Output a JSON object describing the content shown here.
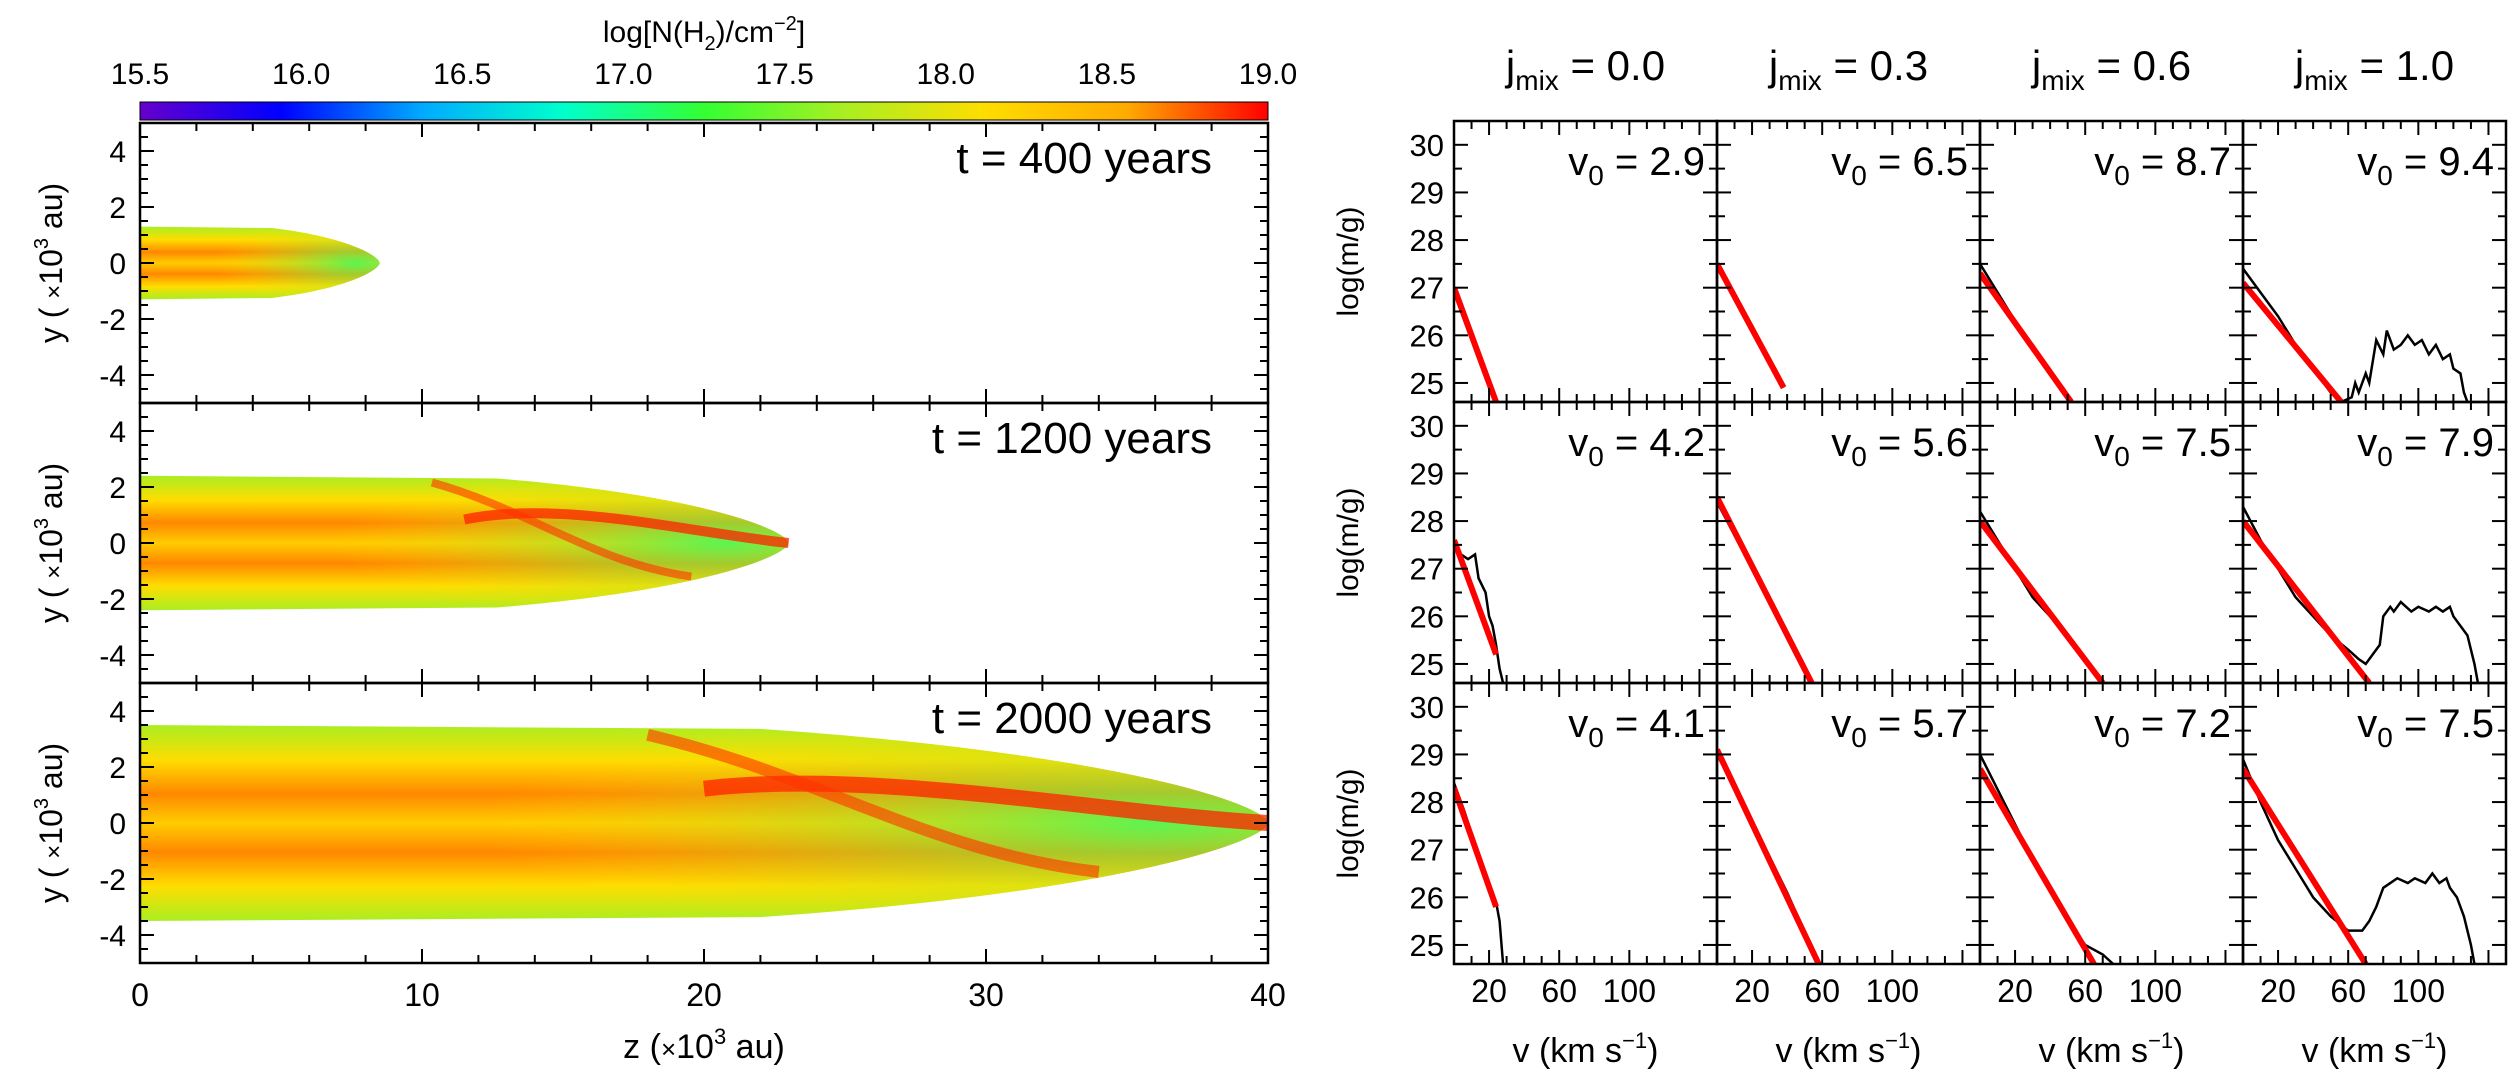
{
  "chart_data": [
    {
      "type": "heatmap",
      "colorbar": {
        "label": "log[N(H2)/cm^-2]",
        "label_parts": [
          "log[N(H",
          "2",
          ")/cm",
          "−2",
          "]"
        ],
        "ticks": [
          "15.5",
          "16.0",
          "16.5",
          "17.0",
          "17.5",
          "18.0",
          "18.5",
          "19.0"
        ],
        "range": [
          15.5,
          19.0
        ],
        "colors": [
          "#6600cc",
          "#0000ff",
          "#00aaff",
          "#00ffcc",
          "#33ff33",
          "#aaee22",
          "#ffdd00",
          "#ffaa00",
          "#ff0000"
        ]
      },
      "x_axis": {
        "label": "z (×10^3 au)",
        "label_parts": [
          "z (",
          "×",
          "10",
          "3",
          " au)"
        ],
        "range": [
          0,
          40
        ],
        "ticks": [
          "0",
          "10",
          "20",
          "30",
          "40"
        ]
      },
      "y_axis": {
        "label": "y (×10^3 au)",
        "label_parts": [
          "y ( ",
          "×",
          "10",
          "3",
          " au)"
        ],
        "range": [
          -5,
          5
        ],
        "ticks": [
          "4",
          "2",
          "0",
          "-2",
          "-4"
        ]
      },
      "panels": [
        {
          "time_label": "t = 400 years",
          "extent_z": 8.5,
          "half_width": 1.3
        },
        {
          "time_label": "t = 1200 years",
          "extent_z": 23.0,
          "half_width": 2.4
        },
        {
          "time_label": "t = 2000 years",
          "extent_z": 40.0,
          "half_width": 3.5
        }
      ]
    },
    {
      "type": "line",
      "y_axis": {
        "label": "log(m/g)",
        "range": [
          24.6,
          30.5
        ],
        "ticks": [
          "30",
          "29",
          "28",
          "27",
          "26",
          "25"
        ]
      },
      "x_axis": {
        "label": "v (km s^-1)",
        "label_parts": [
          "v (km s",
          "−1",
          ")"
        ],
        "range": [
          0,
          150
        ],
        "ticks": [
          "20",
          "60",
          "100"
        ]
      },
      "columns": [
        {
          "label": "j_mix = 0.0",
          "label_main": "j",
          "label_sub": "mix",
          "label_value": " = 0.0"
        },
        {
          "label": "j_mix = 0.3",
          "label_main": "j",
          "label_sub": "mix",
          "label_value": " = 0.3"
        },
        {
          "label": "j_mix = 0.6",
          "label_main": "j",
          "label_sub": "mix",
          "label_value": " = 0.6"
        },
        {
          "label": "j_mix = 1.0",
          "label_main": "j",
          "label_sub": "mix",
          "label_value": " = 1.0"
        }
      ],
      "rows": [
        [
          {
            "v0": "2.9",
            "fit": [
              [
                0,
                27.0
              ],
              [
                24,
                24.6
              ]
            ],
            "sim": [
              [
                0,
                26.9
              ],
              [
                6,
                26.3
              ],
              [
                12,
                25.7
              ],
              [
                18,
                25.1
              ],
              [
                24,
                24.6
              ]
            ]
          },
          {
            "v0": "6.5",
            "fit": [
              [
                0,
                27.5
              ],
              [
                38,
                24.9
              ]
            ],
            "sim": [
              [
                0,
                27.5
              ],
              [
                10,
                26.8
              ],
              [
                20,
                26.2
              ],
              [
                30,
                25.5
              ],
              [
                38,
                24.9
              ]
            ]
          },
          {
            "v0": "8.7",
            "fit": [
              [
                0,
                27.3
              ],
              [
                52,
                24.6
              ]
            ],
            "sim": [
              [
                0,
                27.5
              ],
              [
                10,
                26.9
              ],
              [
                20,
                26.3
              ],
              [
                30,
                25.8
              ],
              [
                40,
                25.2
              ],
              [
                52,
                24.6
              ]
            ]
          },
          {
            "v0": "9.4",
            "fit": [
              [
                0,
                27.1
              ],
              [
                56,
                24.6
              ]
            ],
            "sim": [
              [
                0,
                27.4
              ],
              [
                10,
                26.9
              ],
              [
                20,
                26.4
              ],
              [
                30,
                25.8
              ],
              [
                40,
                25.3
              ],
              [
                50,
                24.8
              ],
              [
                56,
                24.6
              ],
              [
                62,
                24.7
              ],
              [
                64,
                25.0
              ],
              [
                66,
                24.8
              ],
              [
                70,
                25.2
              ],
              [
                72,
                25.0
              ],
              [
                76,
                25.9
              ],
              [
                80,
                25.6
              ],
              [
                82,
                26.1
              ],
              [
                86,
                25.7
              ],
              [
                90,
                25.8
              ],
              [
                94,
                26.0
              ],
              [
                98,
                25.8
              ],
              [
                102,
                25.9
              ],
              [
                106,
                25.6
              ],
              [
                110,
                25.8
              ],
              [
                114,
                25.5
              ],
              [
                118,
                25.6
              ],
              [
                120,
                25.3
              ],
              [
                124,
                25.2
              ],
              [
                126,
                24.8
              ],
              [
                128,
                24.6
              ]
            ]
          }
        ],
        [
          {
            "v0": "4.2",
            "fit": [
              [
                0,
                27.6
              ],
              [
                24,
                25.2
              ]
            ],
            "sim": [
              [
                0,
                27.5
              ],
              [
                4,
                27.3
              ],
              [
                8,
                27.2
              ],
              [
                12,
                27.3
              ],
              [
                14,
                26.8
              ],
              [
                18,
                26.5
              ],
              [
                20,
                26.0
              ],
              [
                22,
                25.8
              ],
              [
                24,
                25.4
              ],
              [
                26,
                24.9
              ],
              [
                28,
                24.6
              ]
            ]
          },
          {
            "v0": "5.6",
            "fit": [
              [
                0,
                28.5
              ],
              [
                54,
                24.6
              ]
            ],
            "sim": [
              [
                0,
                28.4
              ],
              [
                20,
                27.0
              ],
              [
                40,
                25.6
              ],
              [
                54,
                24.6
              ]
            ]
          },
          {
            "v0": "7.5",
            "fit": [
              [
                0,
                28.0
              ],
              [
                70,
                24.6
              ]
            ],
            "sim": [
              [
                0,
                28.2
              ],
              [
                15,
                27.3
              ],
              [
                30,
                26.4
              ],
              [
                45,
                25.8
              ],
              [
                60,
                25.1
              ],
              [
                70,
                24.6
              ]
            ]
          },
          {
            "v0": "7.9",
            "fit": [
              [
                0,
                28.0
              ],
              [
                72,
                24.6
              ]
            ],
            "sim": [
              [
                0,
                28.3
              ],
              [
                10,
                27.6
              ],
              [
                20,
                27.0
              ],
              [
                30,
                26.4
              ],
              [
                40,
                26.0
              ],
              [
                50,
                25.6
              ],
              [
                60,
                25.3
              ],
              [
                66,
                25.1
              ],
              [
                70,
                25.0
              ],
              [
                74,
                25.2
              ],
              [
                78,
                25.4
              ],
              [
                80,
                26.0
              ],
              [
                84,
                26.2
              ],
              [
                86,
                26.1
              ],
              [
                90,
                26.3
              ],
              [
                96,
                26.1
              ],
              [
                100,
                26.2
              ],
              [
                106,
                26.1
              ],
              [
                110,
                26.2
              ],
              [
                114,
                26.1
              ],
              [
                118,
                26.2
              ],
              [
                120,
                26.0
              ],
              [
                124,
                25.8
              ],
              [
                128,
                25.6
              ],
              [
                132,
                25.0
              ],
              [
                134,
                24.6
              ]
            ]
          }
        ],
        [
          {
            "v0": "4.1",
            "fit": [
              [
                0,
                28.3
              ],
              [
                24,
                25.8
              ]
            ],
            "sim": [
              [
                0,
                28.4
              ],
              [
                6,
                27.8
              ],
              [
                12,
                27.1
              ],
              [
                18,
                26.5
              ],
              [
                24,
                25.9
              ],
              [
                26,
                25.5
              ],
              [
                28,
                24.6
              ]
            ]
          },
          {
            "v0": "5.7",
            "fit": [
              [
                0,
                29.1
              ],
              [
                58,
                24.6
              ]
            ],
            "sim": [
              [
                0,
                29.0
              ],
              [
                20,
                27.6
              ],
              [
                40,
                26.1
              ],
              [
                58,
                24.6
              ]
            ]
          },
          {
            "v0": "7.2",
            "fit": [
              [
                0,
                28.7
              ],
              [
                65,
                24.6
              ]
            ],
            "sim": [
              [
                0,
                29.0
              ],
              [
                15,
                27.9
              ],
              [
                30,
                26.8
              ],
              [
                45,
                25.8
              ],
              [
                60,
                25.0
              ],
              [
                70,
                24.8
              ],
              [
                76,
                24.6
              ]
            ]
          },
          {
            "v0": "7.5",
            "fit": [
              [
                0,
                28.7
              ],
              [
                70,
                24.6
              ]
            ],
            "sim": [
              [
                0,
                28.9
              ],
              [
                10,
                28.0
              ],
              [
                20,
                27.2
              ],
              [
                30,
                26.6
              ],
              [
                40,
                26.0
              ],
              [
                50,
                25.6
              ],
              [
                60,
                25.3
              ],
              [
                68,
                25.3
              ],
              [
                72,
                25.5
              ],
              [
                76,
                25.8
              ],
              [
                80,
                26.2
              ],
              [
                84,
                26.3
              ],
              [
                88,
                26.4
              ],
              [
                94,
                26.3
              ],
              [
                98,
                26.4
              ],
              [
                104,
                26.3
              ],
              [
                108,
                26.5
              ],
              [
                112,
                26.3
              ],
              [
                116,
                26.4
              ],
              [
                118,
                26.2
              ],
              [
                122,
                26.0
              ],
              [
                126,
                25.6
              ],
              [
                130,
                25.0
              ],
              [
                132,
                24.6
              ]
            ]
          }
        ]
      ],
      "v0_prefix": "v",
      "v0_sub": "0",
      "fit_color": "#ff0000",
      "sim_color": "#000000"
    }
  ]
}
